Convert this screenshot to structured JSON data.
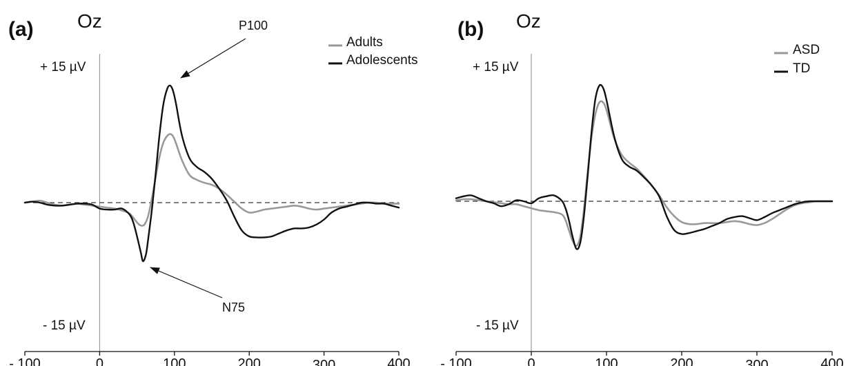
{
  "chart_data": [
    {
      "type": "line",
      "panel_label": "(a)",
      "electrode": "Oz",
      "y_top_label": "+ 15 µV",
      "y_bottom_label": "- 15 µV",
      "xlim": [
        -100,
        400
      ],
      "ylim": [
        -15,
        15
      ],
      "xticks": [
        -100,
        0,
        100,
        200,
        300,
        400
      ],
      "xtick_labels": [
        "- 100",
        "0",
        "100",
        "200",
        "300",
        "400"
      ],
      "baseline": 0,
      "annotations": [
        {
          "text": "P100",
          "x": 93,
          "y": 11.8
        },
        {
          "text": "N75",
          "x": 58,
          "y": -5.9
        }
      ],
      "series": [
        {
          "name": "Adults",
          "color": "#999999",
          "x": [
            -100,
            -90,
            -80,
            -70,
            -60,
            -50,
            -40,
            -30,
            -20,
            -10,
            0,
            10,
            20,
            30,
            40,
            50,
            55,
            60,
            65,
            70,
            75,
            80,
            85,
            90,
            95,
            100,
            110,
            120,
            130,
            140,
            150,
            160,
            170,
            180,
            190,
            200,
            210,
            220,
            230,
            240,
            250,
            260,
            270,
            280,
            290,
            300,
            310,
            320,
            330,
            340,
            350,
            360,
            370,
            380,
            390,
            400
          ],
          "y": [
            0,
            0.1,
            0.2,
            0,
            -0.2,
            -0.3,
            -0.2,
            -0.1,
            -0.2,
            -0.3,
            -0.4,
            -0.5,
            -0.6,
            -0.8,
            -1.1,
            -2.0,
            -2.3,
            -2.2,
            -1.3,
            0.5,
            2.6,
            4.6,
            6.0,
            6.7,
            6.9,
            6.4,
            4.3,
            2.8,
            2.3,
            2.0,
            1.8,
            1.4,
            0.8,
            0.1,
            -0.6,
            -1.0,
            -0.9,
            -0.7,
            -0.6,
            -0.5,
            -0.4,
            -0.3,
            -0.4,
            -0.6,
            -0.7,
            -0.6,
            -0.5,
            -0.4,
            -0.3,
            -0.2,
            -0.1,
            0,
            0,
            -0.1,
            -0.1,
            -0.1
          ]
        },
        {
          "name": "Adolescents",
          "color": "#111111",
          "x": [
            -100,
            -90,
            -80,
            -70,
            -60,
            -50,
            -40,
            -30,
            -20,
            -10,
            0,
            10,
            20,
            30,
            40,
            45,
            50,
            55,
            58,
            62,
            65,
            70,
            75,
            80,
            85,
            90,
            94,
            98,
            102,
            110,
            120,
            130,
            140,
            150,
            160,
            170,
            180,
            190,
            200,
            210,
            220,
            230,
            240,
            250,
            260,
            270,
            280,
            290,
            300,
            310,
            320,
            330,
            340,
            350,
            360,
            370,
            380,
            390,
            400
          ],
          "y": [
            0,
            0.1,
            0,
            -0.2,
            -0.3,
            -0.3,
            -0.2,
            -0.1,
            -0.1,
            -0.2,
            -0.6,
            -0.7,
            -0.7,
            -0.6,
            -1.2,
            -2.0,
            -3.4,
            -5.0,
            -5.9,
            -5.2,
            -3.6,
            -0.6,
            3.0,
            6.8,
            9.8,
            11.4,
            11.8,
            11.3,
            10.0,
            6.8,
            4.5,
            3.6,
            3.1,
            2.4,
            1.4,
            0.2,
            -1.4,
            -2.8,
            -3.4,
            -3.5,
            -3.5,
            -3.4,
            -3.1,
            -2.8,
            -2.6,
            -2.6,
            -2.5,
            -2.2,
            -1.7,
            -1.0,
            -0.6,
            -0.4,
            -0.2,
            0,
            0,
            -0.1,
            -0.1,
            -0.3,
            -0.5
          ]
        }
      ]
    },
    {
      "type": "line",
      "panel_label": "(b)",
      "electrode": "Oz",
      "y_top_label": "+ 15 µV",
      "y_bottom_label": "- 15 µV",
      "xlim": [
        -100,
        400
      ],
      "ylim": [
        -15,
        15
      ],
      "xticks": [
        -100,
        0,
        100,
        200,
        300,
        400
      ],
      "xtick_labels": [
        "- 100",
        "0",
        "100",
        "200",
        "300",
        "400"
      ],
      "baseline": 0,
      "series": [
        {
          "name": "ASD",
          "color": "#999999",
          "x": [
            -100,
            -90,
            -80,
            -70,
            -60,
            -50,
            -40,
            -30,
            -20,
            -10,
            0,
            10,
            20,
            30,
            40,
            45,
            50,
            55,
            60,
            65,
            70,
            75,
            80,
            85,
            90,
            95,
            100,
            110,
            120,
            130,
            140,
            150,
            160,
            170,
            180,
            190,
            200,
            210,
            220,
            230,
            240,
            250,
            260,
            270,
            280,
            290,
            300,
            310,
            320,
            330,
            340,
            350,
            360,
            370,
            380,
            390,
            400
          ],
          "y": [
            0.1,
            0.2,
            0.2,
            0.1,
            0,
            -0.1,
            -0.2,
            -0.3,
            -0.3,
            -0.5,
            -0.7,
            -0.9,
            -1.0,
            -1.1,
            -1.3,
            -1.8,
            -2.9,
            -4.0,
            -4.5,
            -3.6,
            -0.8,
            3.0,
            6.4,
            8.7,
            9.9,
            10.0,
            9.2,
            6.4,
            4.7,
            3.9,
            3.3,
            2.5,
            1.6,
            0.6,
            -0.6,
            -1.5,
            -2.1,
            -2.3,
            -2.3,
            -2.2,
            -2.2,
            -2.2,
            -2.1,
            -2.0,
            -2.1,
            -2.3,
            -2.4,
            -2.2,
            -1.8,
            -1.3,
            -0.8,
            -0.4,
            -0.2,
            -0.1,
            0,
            0,
            0
          ]
        },
        {
          "name": "TD",
          "color": "#111111",
          "x": [
            -100,
            -90,
            -80,
            -70,
            -60,
            -50,
            -40,
            -30,
            -20,
            -10,
            0,
            10,
            20,
            30,
            40,
            45,
            50,
            55,
            60,
            65,
            70,
            75,
            80,
            85,
            90,
            95,
            100,
            110,
            120,
            130,
            140,
            150,
            160,
            170,
            180,
            190,
            200,
            210,
            220,
            230,
            240,
            250,
            260,
            270,
            280,
            290,
            300,
            310,
            320,
            330,
            340,
            350,
            360,
            370,
            380,
            390,
            400
          ],
          "y": [
            0.3,
            0.5,
            0.6,
            0.3,
            0,
            -0.2,
            -0.5,
            -0.3,
            0.1,
            0,
            -0.2,
            0.3,
            0.5,
            0.6,
            0.1,
            -0.6,
            -1.9,
            -3.6,
            -4.8,
            -4.2,
            -1.5,
            2.6,
            6.9,
            10.2,
            11.6,
            11.5,
            10.2,
            6.6,
            4.3,
            3.5,
            3.1,
            2.4,
            1.6,
            0.5,
            -1.5,
            -2.9,
            -3.3,
            -3.2,
            -3.0,
            -2.8,
            -2.5,
            -2.2,
            -1.8,
            -1.6,
            -1.5,
            -1.7,
            -1.9,
            -1.6,
            -1.2,
            -0.9,
            -0.6,
            -0.3,
            -0.1,
            0,
            0,
            0,
            0
          ]
        }
      ]
    }
  ]
}
